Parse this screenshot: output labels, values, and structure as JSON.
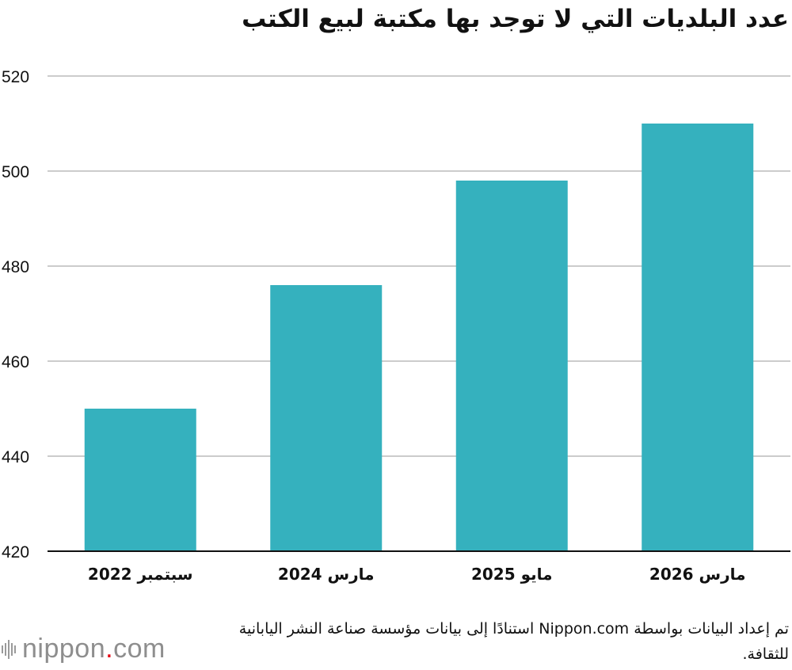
{
  "chart_data": {
    "type": "bar",
    "title": "عدد البلديات التي لا توجد بها مكتبة لبيع الكتب",
    "categories": [
      "سبتمبر 2022",
      "مارس 2024",
      "مايو 2025",
      "مارس 2026"
    ],
    "values": [
      450,
      476,
      498,
      510
    ],
    "ylim": [
      420,
      520
    ],
    "yticks": [
      420,
      440,
      460,
      480,
      500,
      520
    ],
    "grid": true,
    "bar_color": "#35b1be",
    "grid_color": "#cccccc",
    "axis_color": "#111111"
  },
  "source": "تم إعداد البيانات بواسطة Nippon.com استنادًا إلى بيانات مؤسسة صناعة النشر اليابانية للثقافة.",
  "logo": {
    "text": "nippon.com",
    "icon": "nippon-sound-bars-icon",
    "dot_color": "#e60012"
  }
}
